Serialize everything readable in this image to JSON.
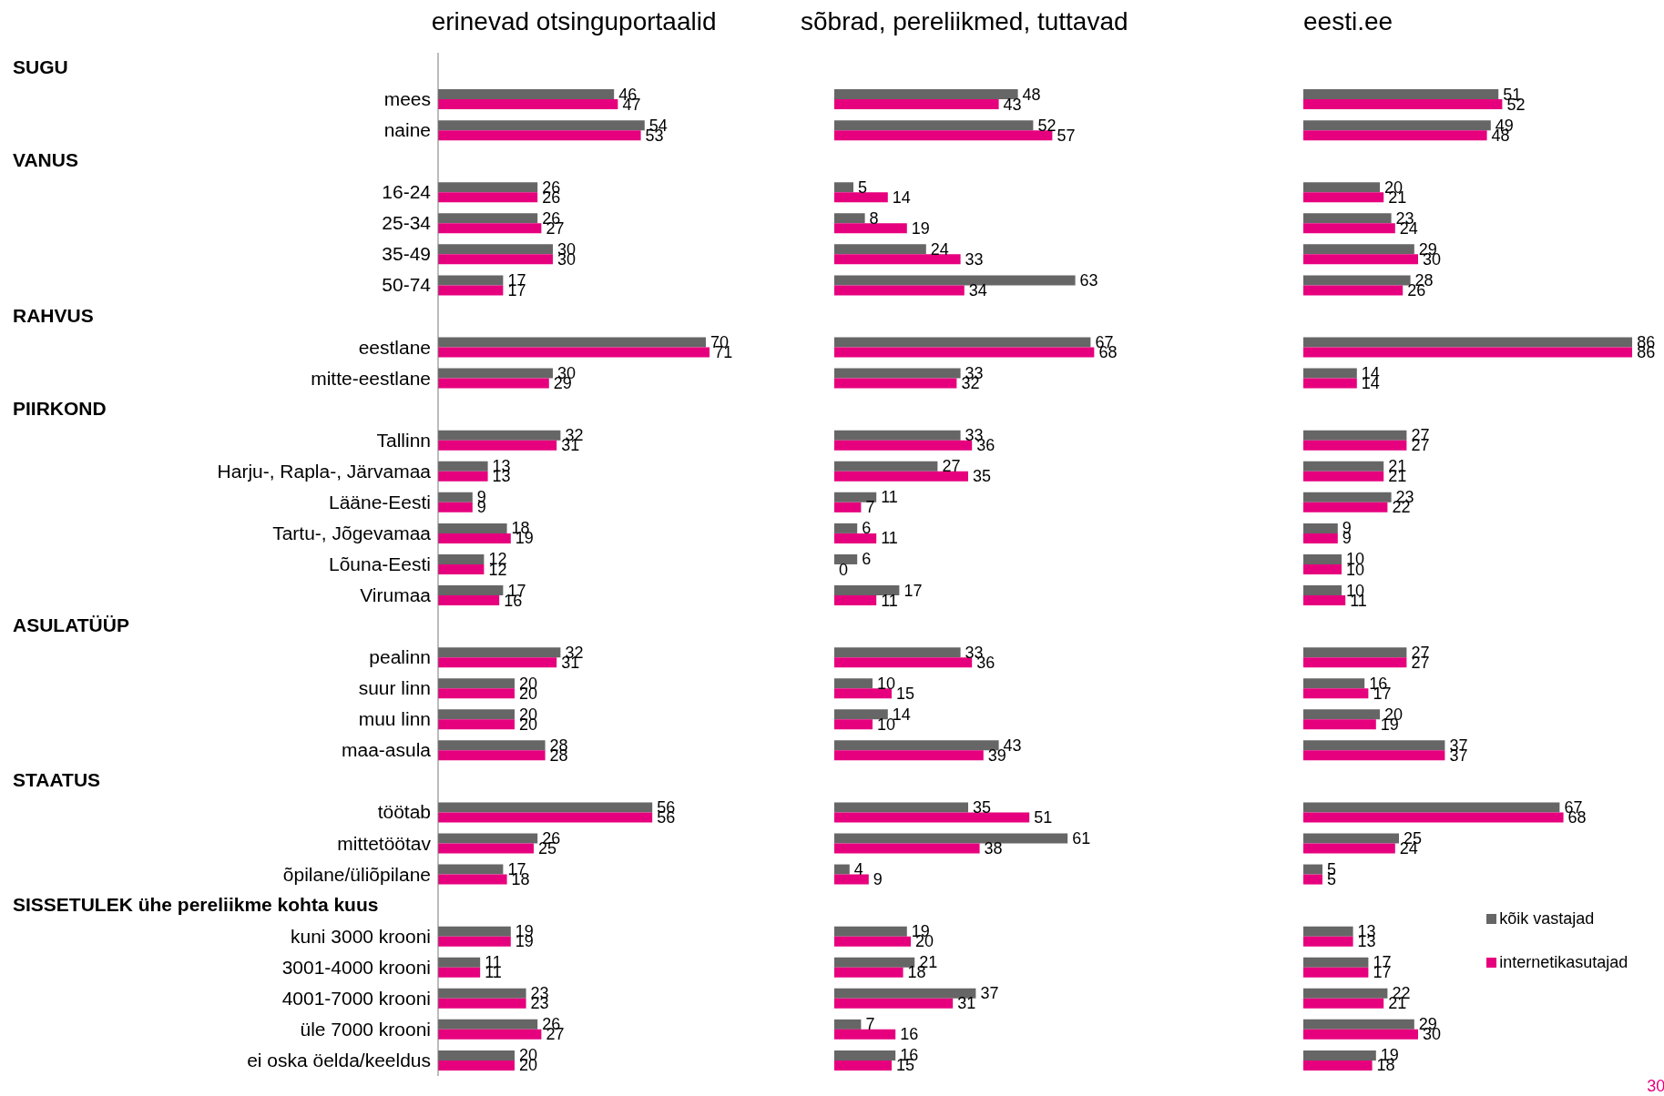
{
  "chart_data": [
    {
      "type": "bar",
      "orientation": "horizontal",
      "title": "erinevad otsinguportaalid",
      "data_labels": true,
      "tick_labels": "y",
      "annotations": [
        "SUGU",
        "VANUS",
        "RAHVUS",
        "PIIRKOND",
        "ASULATÜÜP",
        "STAATUS",
        "SISSETULEK ühe pereliikme kohta kuus"
      ],
      "categories": [
        null,
        "mees",
        "naine",
        null,
        "16-24",
        "25-34",
        "35-49",
        "50-74",
        null,
        "eestlane",
        "mitte-eestlane",
        null,
        "Tallinn",
        "Harju-, Rapla-, Järvamaa",
        "Lääne-Eesti",
        "Tartu-, Jõgevamaa",
        "Lõuna-Eesti",
        "Virumaa",
        null,
        "pealinn",
        "suur linn",
        "muu linn",
        "maa-asula",
        null,
        "töötab",
        "mittetöötav",
        "õpilane/üliõpilane",
        null,
        "kuni 3000 krooni",
        "3001-4000 krooni",
        "4001-7000 krooni",
        "üle 7000 krooni",
        "ei oska öelda/keeldus"
      ],
      "series": [
        {
          "color": "#666666",
          "values": [
            null,
            46,
            54,
            null,
            26,
            26,
            30,
            17,
            null,
            70,
            30,
            null,
            32,
            13,
            9,
            18,
            12,
            17,
            null,
            32,
            20,
            20,
            28,
            null,
            56,
            26,
            17,
            null,
            19,
            11,
            23,
            26,
            20
          ]
        },
        {
          "color": "#e6007e",
          "values": [
            null,
            47,
            53,
            null,
            26,
            27,
            30,
            17,
            null,
            71,
            29,
            null,
            31,
            13,
            9,
            19,
            12,
            16,
            null,
            31,
            20,
            20,
            28,
            null,
            56,
            25,
            18,
            null,
            19,
            11,
            23,
            27,
            20
          ]
        }
      ]
    },
    {
      "type": "bar",
      "orientation": "horizontal",
      "title": "sõbrad, pereliikmed, tuttavad",
      "data_labels": true,
      "tick_labels": false,
      "categories": [
        null,
        null,
        null,
        null,
        null,
        null,
        null,
        null,
        null,
        null,
        null,
        null,
        null,
        null,
        null,
        null,
        null,
        null,
        null,
        null,
        null,
        null,
        null,
        null,
        null,
        null,
        null,
        null,
        null,
        null,
        null,
        null,
        null
      ],
      "series": [
        {
          "color": "#666666",
          "values": [
            null,
            48,
            52,
            null,
            5,
            8,
            24,
            63,
            null,
            67,
            33,
            null,
            33,
            27,
            11,
            6,
            6,
            17,
            null,
            33,
            10,
            14,
            43,
            null,
            35,
            61,
            4,
            null,
            19,
            21,
            37,
            7,
            16
          ]
        },
        {
          "color": "#e6007e",
          "values": [
            null,
            43,
            57,
            null,
            14,
            19,
            33,
            34,
            null,
            68,
            32,
            null,
            36,
            35,
            7,
            11,
            0,
            11,
            null,
            36,
            15,
            10,
            39,
            null,
            51,
            38,
            9,
            null,
            20,
            18,
            31,
            16,
            15
          ]
        }
      ]
    },
    {
      "type": "bar",
      "orientation": "horizontal",
      "title": "eesti.ee",
      "data_labels": true,
      "tick_labels": false,
      "legend": "bottom right",
      "annotations": [
        "30"
      ],
      "categories": [
        null,
        null,
        null,
        null,
        null,
        null,
        null,
        null,
        null,
        null,
        null,
        null,
        null,
        null,
        null,
        null,
        null,
        null,
        null,
        null,
        null,
        null,
        null,
        null,
        null,
        null,
        null,
        null,
        null,
        null,
        null,
        null,
        null
      ],
      "series": [
        {
          "name": "kõik vastajad",
          "color": "#666666",
          "values": [
            null,
            51,
            49,
            null,
            20,
            23,
            29,
            28,
            null,
            86,
            14,
            null,
            27,
            21,
            23,
            9,
            10,
            10,
            null,
            27,
            16,
            20,
            37,
            null,
            67,
            25,
            5,
            null,
            13,
            17,
            22,
            29,
            19
          ]
        },
        {
          "name": "internetikasutajad",
          "color": "#e6007e",
          "values": [
            null,
            52,
            48,
            null,
            21,
            24,
            30,
            26,
            null,
            86,
            14,
            null,
            27,
            21,
            22,
            9,
            10,
            11,
            null,
            27,
            17,
            19,
            37,
            null,
            68,
            24,
            5,
            null,
            13,
            17,
            21,
            30,
            18
          ]
        }
      ]
    }
  ]
}
